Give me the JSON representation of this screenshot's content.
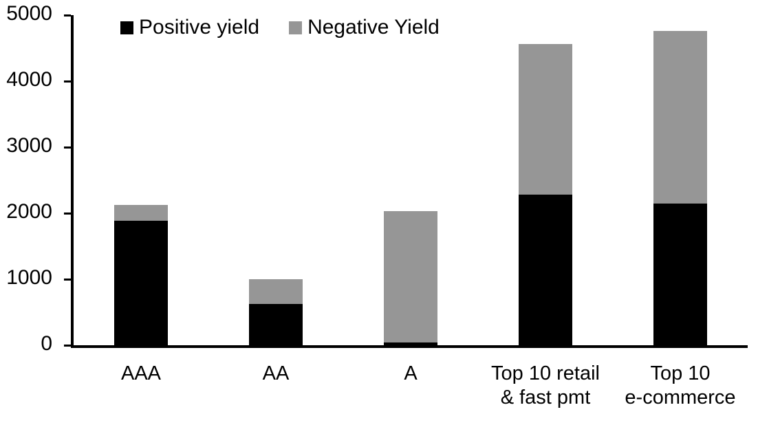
{
  "chart_data": {
    "type": "bar",
    "stacked": true,
    "title": "",
    "xlabel": "",
    "ylabel": "",
    "categories": [
      "AAA",
      "AA",
      "A",
      "Top 10 retail\n& fast pmt",
      "Top 10\ne-commerce"
    ],
    "series": [
      {
        "name": "Positive yield",
        "color": "#000000",
        "values": [
          1890,
          620,
          45,
          2280,
          2150
        ]
      },
      {
        "name": "Negative Yield",
        "color": "#969696",
        "values": [
          230,
          380,
          1985,
          2280,
          2610
        ]
      }
    ],
    "totals": [
      2120,
      1000,
      2030,
      4560,
      4760
    ],
    "ylim": [
      0,
      5000
    ],
    "yticks": [
      0,
      1000,
      2000,
      3000,
      4000,
      5000
    ],
    "grid": false,
    "legend_position": "top-inside"
  },
  "colors": {
    "background": "#ffffff",
    "axis": "#000000",
    "text": "#000000",
    "positive_series": "#000000",
    "negative_series": "#969696"
  }
}
